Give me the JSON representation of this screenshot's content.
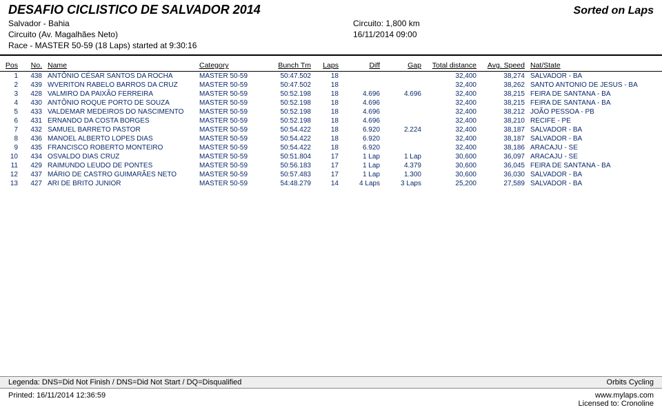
{
  "header": {
    "title": "DESAFIO CICLISTICO DE SALVADOR 2014",
    "sorted": "Sorted on Laps",
    "location": "Salvador - Bahia",
    "circuito": "Circuito: 1,800 km",
    "track": "Circuito (Av. Magalhães Neto)",
    "datetime": "16/11/2014 09:00",
    "race": "Race - MASTER 50-59 (18 Laps) started at 9:30:16"
  },
  "columns": {
    "pos": "Pos",
    "no": "No.",
    "name": "Name",
    "category": "Category",
    "bunch": "Bunch Tm",
    "laps": "Laps",
    "diff": "Diff",
    "gap": "Gap",
    "total": "Total distance",
    "avg": "Avg. Speed",
    "nat": "Nat/State"
  },
  "rows": [
    {
      "pos": "1",
      "no": "438",
      "name": "ANTÔNIO CÉSAR SANTOS DA ROCHA",
      "cat": "MASTER 50-59",
      "bt": "50:47.502",
      "laps": "18",
      "diff": "",
      "gap": "",
      "td": "32,400",
      "avg": "38,274",
      "nat": "SALVADOR - BA"
    },
    {
      "pos": "2",
      "no": "439",
      "name": "WVERITON RABELO BARROS DA CRUZ",
      "cat": "MASTER 50-59",
      "bt": "50:47.502",
      "laps": "18",
      "diff": "",
      "gap": "",
      "td": "32,400",
      "avg": "38,262",
      "nat": "SANTO ANTONIO DE JESUS - BA"
    },
    {
      "pos": "3",
      "no": "428",
      "name": "VALMIRO DA PAIXÃO FERREIRA",
      "cat": "MASTER 50-59",
      "bt": "50:52.198",
      "laps": "18",
      "diff": "4.696",
      "gap": "4.696",
      "td": "32,400",
      "avg": "38,215",
      "nat": "FEIRA DE SANTANA - BA"
    },
    {
      "pos": "4",
      "no": "430",
      "name": "ANTÔNIO ROQUE PORTO DE SOUZA",
      "cat": "MASTER 50-59",
      "bt": "50:52.198",
      "laps": "18",
      "diff": "4.696",
      "gap": "",
      "td": "32,400",
      "avg": "38,215",
      "nat": "FEIRA DE SANTANA - BA"
    },
    {
      "pos": "5",
      "no": "433",
      "name": "VALDEMAR MEDEIROS DO NASCIMENTO",
      "cat": "MASTER 50-59",
      "bt": "50:52.198",
      "laps": "18",
      "diff": "4.696",
      "gap": "",
      "td": "32,400",
      "avg": "38,212",
      "nat": "JOÃO PESSOA - PB"
    },
    {
      "pos": "6",
      "no": "431",
      "name": "ERNANDO DA COSTA BORGES",
      "cat": "MASTER 50-59",
      "bt": "50:52.198",
      "laps": "18",
      "diff": "4.696",
      "gap": "",
      "td": "32,400",
      "avg": "38,210",
      "nat": "RECIFE - PE"
    },
    {
      "pos": "7",
      "no": "432",
      "name": "SAMUEL BARRETO PASTOR",
      "cat": "MASTER 50-59",
      "bt": "50:54.422",
      "laps": "18",
      "diff": "6.920",
      "gap": "2.224",
      "td": "32,400",
      "avg": "38,187",
      "nat": "SALVADOR - BA"
    },
    {
      "pos": "8",
      "no": "436",
      "name": "MANOEL ALBERTO LOPES DIAS",
      "cat": "MASTER 50-59",
      "bt": "50:54.422",
      "laps": "18",
      "diff": "6.920",
      "gap": "",
      "td": "32,400",
      "avg": "38,187",
      "nat": "SALVADOR - BA"
    },
    {
      "pos": "9",
      "no": "435",
      "name": "FRANCISCO ROBERTO MONTEIRO",
      "cat": "MASTER 50-59",
      "bt": "50:54.422",
      "laps": "18",
      "diff": "6.920",
      "gap": "",
      "td": "32,400",
      "avg": "38,186",
      "nat": "ARACAJU - SE"
    },
    {
      "pos": "10",
      "no": "434",
      "name": "OSVALDO DIAS CRUZ",
      "cat": "MASTER 50-59",
      "bt": "50:51.804",
      "laps": "17",
      "diff": "1 Lap",
      "gap": "1 Lap",
      "td": "30,600",
      "avg": "36,097",
      "nat": "ARACAJU - SE"
    },
    {
      "pos": "11",
      "no": "429",
      "name": "RAIMUNDO LEUDO DE PONTES",
      "cat": "MASTER 50-59",
      "bt": "50:56.183",
      "laps": "17",
      "diff": "1 Lap",
      "gap": "4.379",
      "td": "30,600",
      "avg": "36,045",
      "nat": "FEIRA DE SANTANA - BA"
    },
    {
      "pos": "12",
      "no": "437",
      "name": "MÁRIO DE CASTRO GUIMARÃES NETO",
      "cat": "MASTER 50-59",
      "bt": "50:57.483",
      "laps": "17",
      "diff": "1 Lap",
      "gap": "1.300",
      "td": "30,600",
      "avg": "36,030",
      "nat": "SALVADOR - BA"
    },
    {
      "pos": "13",
      "no": "427",
      "name": "ARI DE BRITO JUNIOR",
      "cat": "MASTER 50-59",
      "bt": "54:48.279",
      "laps": "14",
      "diff": "4 Laps",
      "gap": "3 Laps",
      "td": "25,200",
      "avg": "27,589",
      "nat": "SALVADOR - BA"
    }
  ],
  "footer": {
    "legend": "Legenda: DNS=Did Not Finish / DNS=Did Not Start / DQ=Disqualified",
    "orbits": "Orbits Cycling",
    "printed": "Printed: 16/11/2014 12:36:59",
    "url": "www.mylaps.com",
    "lic": "Licensed to: Cronoline"
  }
}
